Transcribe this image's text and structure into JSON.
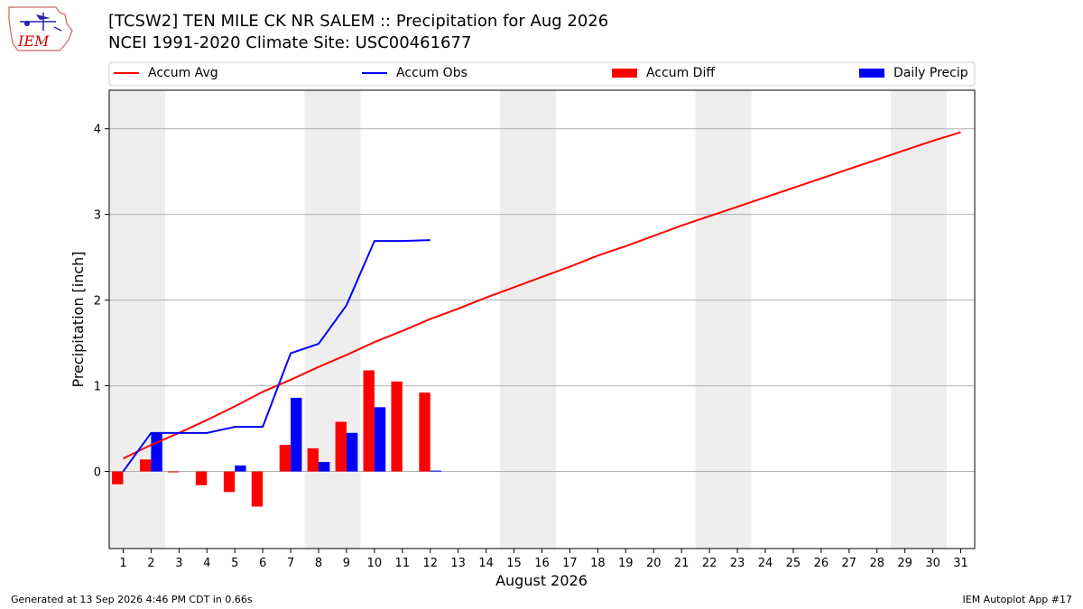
{
  "header": {
    "title_line1": "[TCSW2] TEN MILE CK NR SALEM :: Precipitation for Aug 2026",
    "title_line2": "NCEI 1991-2020 Climate Site: USC00461677",
    "logo_text": "IEM"
  },
  "footer": {
    "left": "Generated at 13 Sep 2026 4:46 PM CDT in 0.66s",
    "right": "IEM Autoplot App #17"
  },
  "legend": {
    "accum_avg": "Accum Avg",
    "accum_obs": "Accum Obs",
    "accum_diff": "Accum Diff",
    "daily_precip": "Daily Precip"
  },
  "colors": {
    "avg": "#ff0000",
    "obs": "#0000ff",
    "diff": "#ff0000",
    "daily": "#0000ff",
    "weekend": "#eeeeee",
    "grid": "#b0b0b0"
  },
  "chart_data": {
    "type": "bar",
    "xlabel": "August 2026",
    "ylabel": "Precipitation [inch]",
    "ylim": [
      -0.9,
      4.45
    ],
    "xlim": [
      0.5,
      31.5
    ],
    "yticks": [
      0,
      1,
      2,
      3,
      4
    ],
    "xticks": [
      1,
      2,
      3,
      4,
      5,
      6,
      7,
      8,
      9,
      10,
      11,
      12,
      13,
      14,
      15,
      16,
      17,
      18,
      19,
      20,
      21,
      22,
      23,
      24,
      25,
      26,
      27,
      28,
      29,
      30,
      31
    ],
    "grid": "horizontal",
    "legend_position": "top",
    "weekend_spans": [
      [
        0.5,
        2.5
      ],
      [
        7.5,
        9.5
      ],
      [
        14.5,
        16.5
      ],
      [
        21.5,
        23.5
      ],
      [
        28.5,
        30.5
      ]
    ],
    "series": [
      {
        "name": "Accum Avg",
        "kind": "line",
        "x": [
          1,
          2,
          3,
          4,
          5,
          6,
          7,
          8,
          9,
          10,
          11,
          12,
          13,
          14,
          15,
          16,
          17,
          18,
          19,
          20,
          21,
          22,
          23,
          24,
          25,
          26,
          27,
          28,
          29,
          30,
          31
        ],
        "values": [
          0.15,
          0.31,
          0.45,
          0.6,
          0.76,
          0.93,
          1.07,
          1.22,
          1.36,
          1.51,
          1.64,
          1.78,
          1.9,
          2.03,
          2.15,
          2.27,
          2.39,
          2.52,
          2.63,
          2.75,
          2.87,
          2.98,
          3.09,
          3.2,
          3.31,
          3.42,
          3.53,
          3.64,
          3.75,
          3.86,
          3.96
        ]
      },
      {
        "name": "Accum Obs",
        "kind": "line",
        "x": [
          1,
          2,
          3,
          4,
          5,
          6,
          7,
          8,
          9,
          10,
          11,
          12
        ],
        "values": [
          0.0,
          0.45,
          0.45,
          0.45,
          0.52,
          0.52,
          1.38,
          1.49,
          1.94,
          2.69,
          2.69,
          2.7
        ]
      },
      {
        "name": "Accum Diff",
        "kind": "bar",
        "x": [
          1,
          2,
          3,
          4,
          5,
          6,
          7,
          8,
          9,
          10,
          11,
          12
        ],
        "values": [
          -0.15,
          0.14,
          -0.01,
          -0.16,
          -0.24,
          -0.41,
          0.31,
          0.27,
          0.58,
          1.18,
          1.05,
          0.92
        ]
      },
      {
        "name": "Daily Precip",
        "kind": "bar",
        "x": [
          1,
          2,
          3,
          4,
          5,
          6,
          7,
          8,
          9,
          10,
          11,
          12
        ],
        "values": [
          0.0,
          0.45,
          0.0,
          0.0,
          0.07,
          0.0,
          0.86,
          0.11,
          0.45,
          0.75,
          0.0,
          0.01
        ]
      }
    ]
  }
}
